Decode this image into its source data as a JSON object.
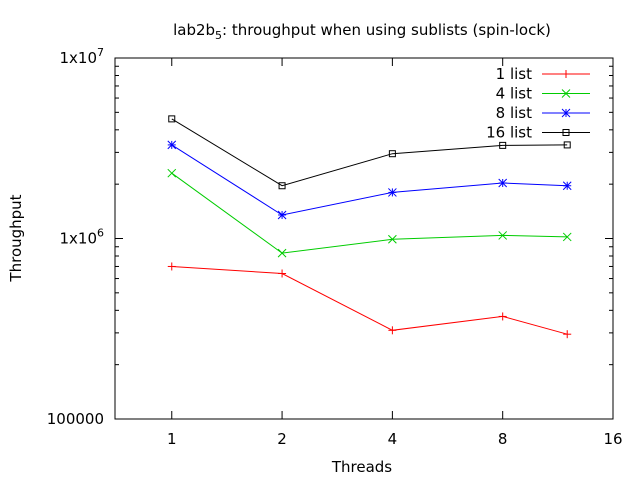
{
  "chart_data": {
    "type": "line",
    "title": {
      "prefix": "lab2b",
      "subscript": "5",
      "suffix": ": throughput when using sublists (spin-lock)"
    },
    "xlabel": "Threads",
    "ylabel": "Throughput",
    "x_scale": "log2",
    "y_scale": "log10",
    "xlim": [
      0.7,
      16
    ],
    "ylim": [
      100000,
      10000000
    ],
    "x_ticks": [
      1,
      2,
      4,
      8,
      16
    ],
    "x_tick_labels": [
      "1",
      "2",
      "4",
      "8",
      "16"
    ],
    "y_ticks": [
      {
        "value": 100000,
        "base": "100000",
        "exp": ""
      },
      {
        "value": 1000000,
        "base": "1x10",
        "exp": "6"
      },
      {
        "value": 10000000,
        "base": "1x10",
        "exp": "7"
      }
    ],
    "grid": false,
    "legend_position": "top-right",
    "x": [
      1,
      2,
      4,
      8,
      12
    ],
    "series": [
      {
        "name": "1 list",
        "color": "#ff0000",
        "marker": "plus",
        "values": [
          700000,
          640000,
          310000,
          370000,
          295000
        ]
      },
      {
        "name": "4 list",
        "color": "#00cc00",
        "marker": "cross",
        "values": [
          2300000,
          830000,
          990000,
          1040000,
          1020000
        ]
      },
      {
        "name": "8 list",
        "color": "#0000ff",
        "marker": "star",
        "values": [
          3300000,
          1350000,
          1800000,
          2030000,
          1960000
        ]
      },
      {
        "name": "16 list",
        "color": "#000000",
        "marker": "square",
        "values": [
          4600000,
          1960000,
          2950000,
          3280000,
          3300000
        ]
      }
    ]
  }
}
